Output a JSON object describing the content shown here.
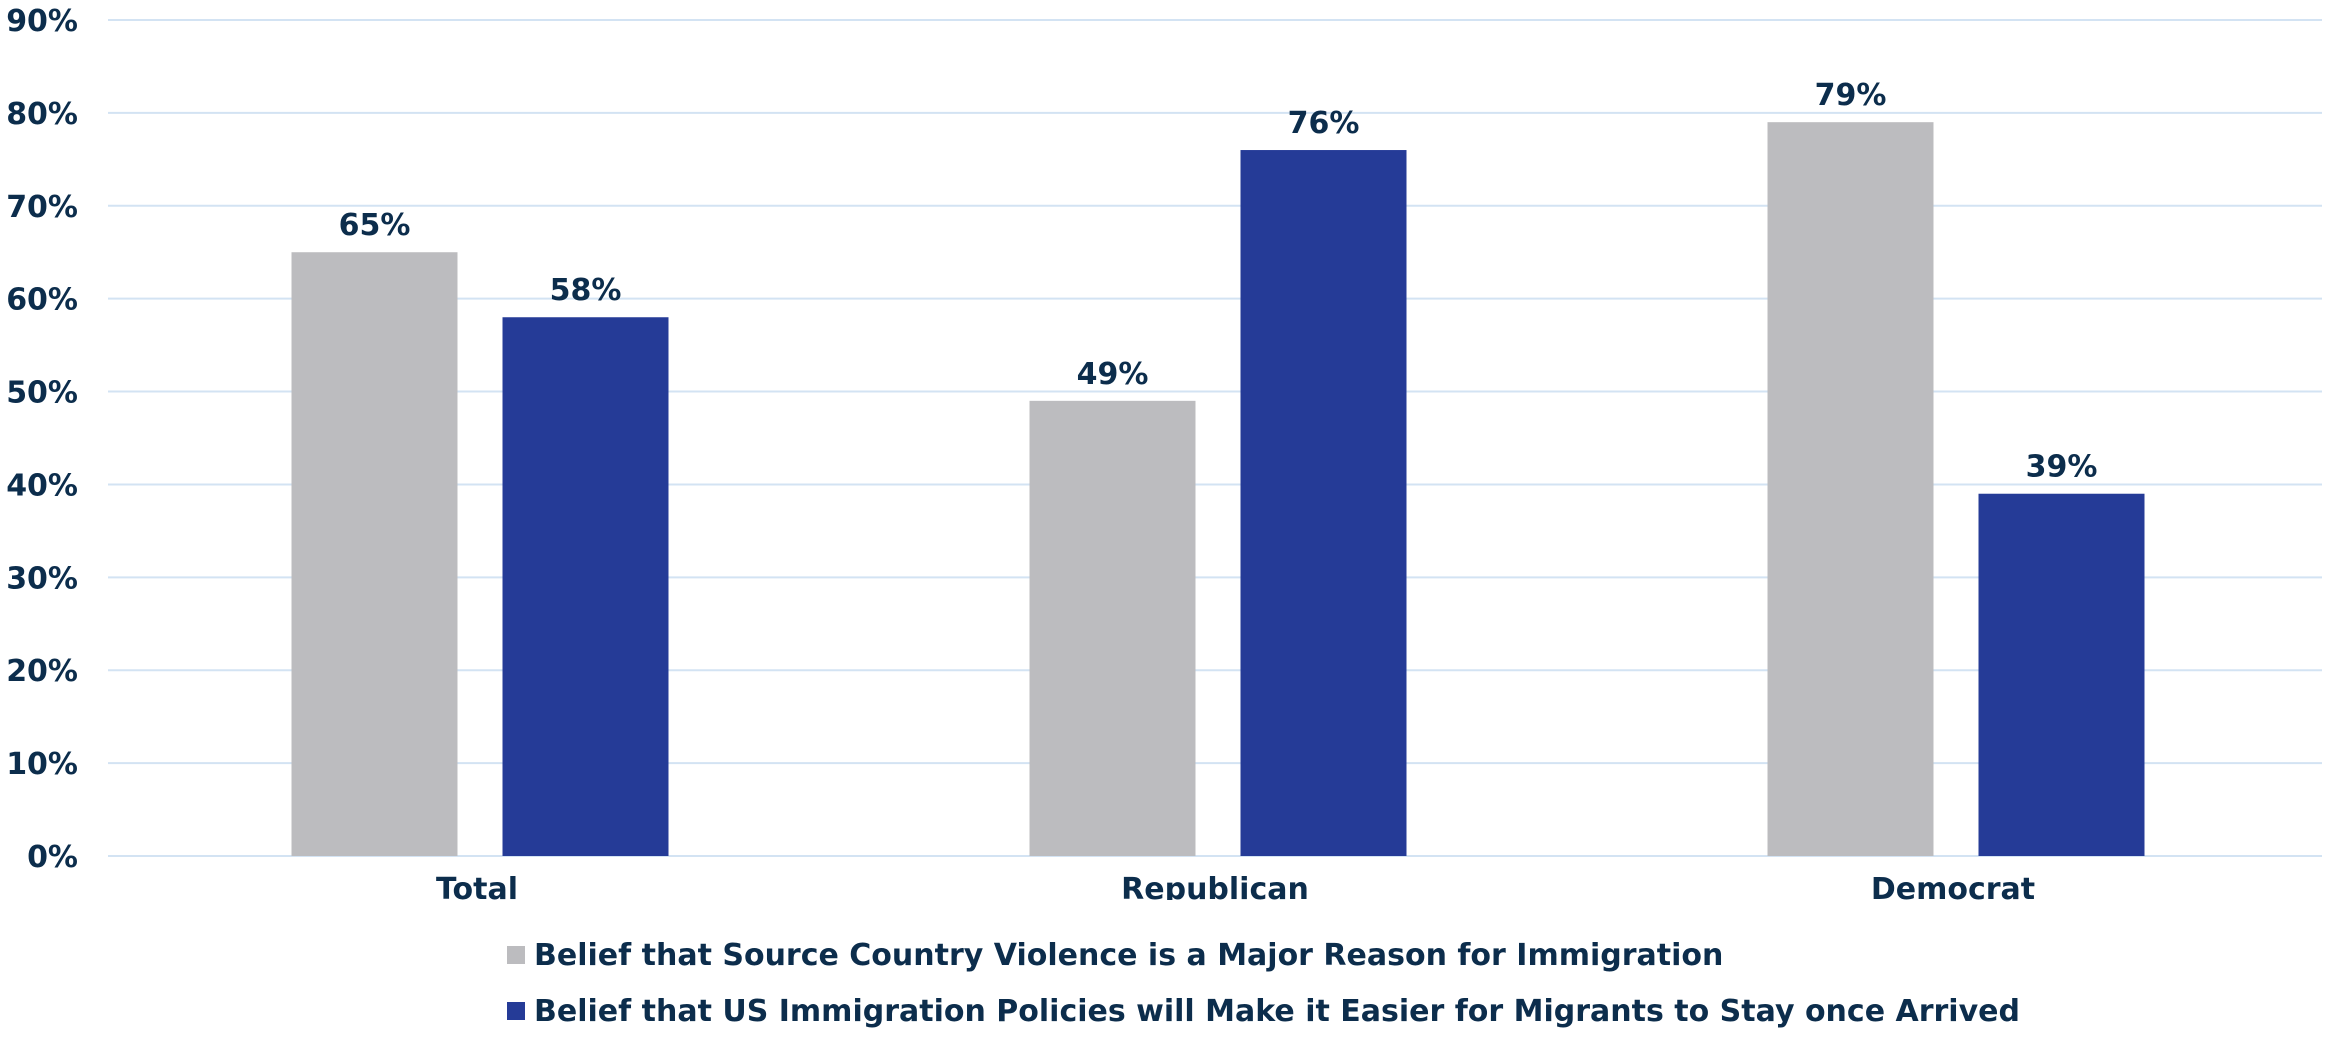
{
  "chart_data": {
    "type": "bar",
    "title": "",
    "xlabel": "",
    "ylabel": "",
    "categories": [
      "Total",
      "Republican",
      "Democrat"
    ],
    "series": [
      {
        "name": "Belief that Source Country Violence is a Major Reason for Immigration",
        "values": [
          65,
          49,
          79
        ],
        "labels": [
          "65%",
          "49%",
          "79%"
        ],
        "color": "#bcbcbf"
      },
      {
        "name": "Belief that US Immigration Policies will Make it Easier for Migrants to Stay once Arrived",
        "values": [
          58,
          76,
          39
        ],
        "labels": [
          "58%",
          "76%",
          "39%"
        ],
        "color": "#253b97"
      }
    ],
    "ylim": [
      0,
      90
    ],
    "yticks": [
      0,
      10,
      20,
      30,
      40,
      50,
      60,
      70,
      80,
      90
    ],
    "ytick_labels": [
      "0%",
      "10%",
      "20%",
      "30%",
      "40%",
      "50%",
      "60%",
      "70%",
      "80%",
      "90%"
    ],
    "grid": true,
    "legend": "bottom",
    "text_color": "#0c2d4c",
    "grid_color": "#d3e3f3"
  }
}
